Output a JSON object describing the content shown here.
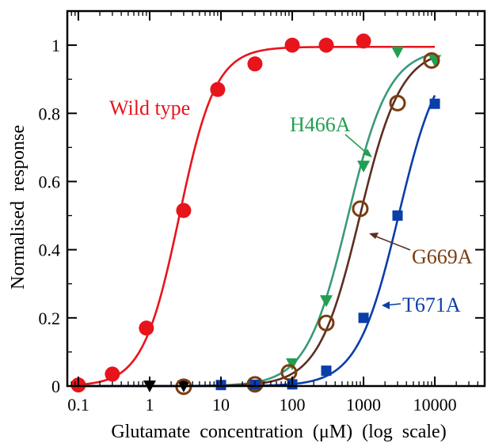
{
  "chart_data": {
    "type": "scatter",
    "xlabel": "Glutamate  concentration  (μM)  (log  scale)",
    "ylabel": "Normalised  response",
    "xscale": "log",
    "xlim": [
      0.07,
      50000
    ],
    "ylim": [
      0,
      1.1
    ],
    "x_ticks": [
      0.1,
      1,
      10,
      100,
      1000,
      10000
    ],
    "x_tick_labels": [
      "0.1",
      "1",
      "10",
      "100",
      "1000",
      "10000"
    ],
    "y_ticks": [
      0,
      0.2,
      0.4,
      0.6,
      0.8,
      1
    ],
    "y_tick_labels": [
      "0",
      "0.2",
      "0.4",
      "0.6",
      "0.8",
      "1"
    ],
    "grid": false,
    "legend": "inline labels with arrows",
    "series": [
      {
        "name": "Wild type",
        "color": "#e8141c",
        "marker": "circle-filled",
        "x": [
          0.1,
          0.3,
          0.9,
          3,
          9,
          30,
          100,
          300,
          1000
        ],
        "y": [
          0.003,
          0.035,
          0.17,
          0.515,
          0.87,
          0.945,
          1.0,
          1.0,
          1.012
        ],
        "fit": {
          "ec50": 2.6,
          "hill": 1.7,
          "max": 0.995
        }
      },
      {
        "name": "H466A",
        "color": "#20a050",
        "curve_color": "#3a9a78",
        "marker": "triangle-down-filled",
        "x": [
          1,
          3,
          30,
          100,
          300,
          1000,
          3000,
          10000
        ],
        "y": [
          0.0,
          0.0,
          0.0,
          0.065,
          0.25,
          0.645,
          0.98,
          0.955
        ],
        "fit": {
          "ec50": 600,
          "hill": 1.5,
          "max": 0.99
        }
      },
      {
        "name": "G669A",
        "color": "#7a3c10",
        "curve_color": "#5c2e22",
        "marker": "circle-open",
        "x": [
          3,
          30,
          90,
          300,
          900,
          3000,
          9000
        ],
        "y": [
          -0.002,
          0.005,
          0.04,
          0.185,
          0.52,
          0.83,
          0.955
        ],
        "fit": {
          "ec50": 880,
          "hill": 1.5,
          "max": 0.99
        }
      },
      {
        "name": "T671A",
        "color": "#0a3ea8",
        "curve_color": "#0a3ea8",
        "marker": "square-filled",
        "x": [
          10,
          30,
          100,
          300,
          1000,
          3000,
          10000
        ],
        "y": [
          0.003,
          0.004,
          0.005,
          0.045,
          0.2,
          0.5,
          0.828
        ],
        "fit": {
          "ec50": 3100,
          "hill": 1.5,
          "max": 1.0
        }
      }
    ]
  }
}
